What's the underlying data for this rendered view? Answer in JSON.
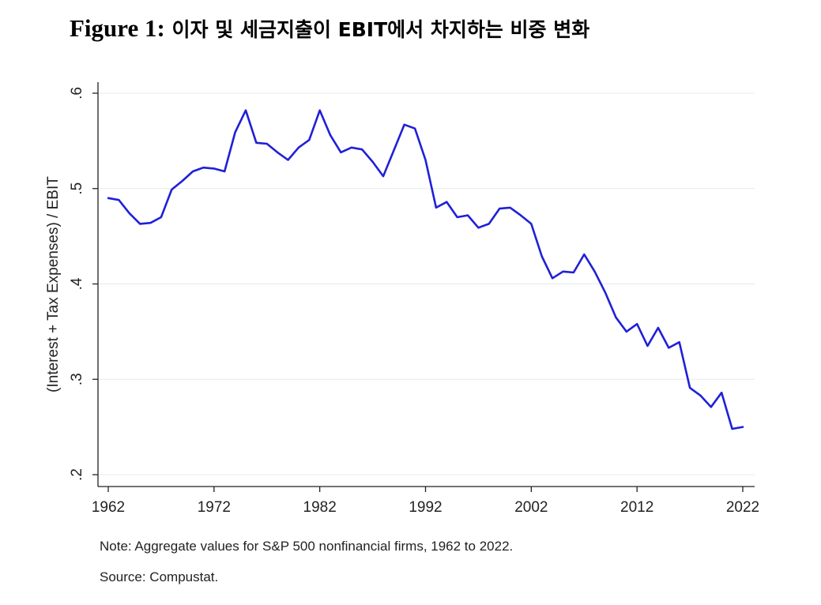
{
  "figure": {
    "label": "Figure 1:",
    "title": "이자 및 세금지출이 EBIT에서 차지하는 비중 변화"
  },
  "note": "Note: Aggregate values for S&P 500 nonfinancial firms, 1962 to 2022.",
  "source": "Source: Compustat.",
  "chart_data": {
    "type": "line",
    "title": "",
    "xlabel": "",
    "ylabel": "(Interest + Tax Expenses) / EBIT",
    "xlim": [
      1962,
      2022
    ],
    "ylim": [
      0.2,
      0.6
    ],
    "x_ticks": [
      1962,
      1972,
      1982,
      1992,
      2002,
      2012,
      2022
    ],
    "y_ticks": [
      0.2,
      0.3,
      0.4,
      0.5,
      0.6
    ],
    "y_tick_labels": [
      ".2",
      ".3",
      ".4",
      ".5",
      ".6"
    ],
    "grid": "horizontal",
    "line_color": "#2020d8",
    "series": [
      {
        "name": "(Interest + Tax Expenses) / EBIT",
        "x": [
          1962,
          1963,
          1964,
          1965,
          1966,
          1967,
          1968,
          1969,
          1970,
          1971,
          1972,
          1973,
          1974,
          1975,
          1976,
          1977,
          1978,
          1979,
          1980,
          1981,
          1982,
          1983,
          1984,
          1985,
          1986,
          1987,
          1988,
          1989,
          1990,
          1991,
          1992,
          1993,
          1994,
          1995,
          1996,
          1997,
          1998,
          1999,
          2000,
          2001,
          2002,
          2003,
          2004,
          2005,
          2006,
          2007,
          2008,
          2009,
          2010,
          2011,
          2012,
          2013,
          2014,
          2015,
          2016,
          2017,
          2018,
          2019,
          2020,
          2021,
          2022
        ],
        "values": [
          0.49,
          0.488,
          0.474,
          0.463,
          0.464,
          0.47,
          0.499,
          0.508,
          0.518,
          0.522,
          0.521,
          0.518,
          0.559,
          0.582,
          0.548,
          0.547,
          0.538,
          0.53,
          0.543,
          0.551,
          0.582,
          0.556,
          0.538,
          0.543,
          0.541,
          0.528,
          0.513,
          0.54,
          0.567,
          0.563,
          0.53,
          0.48,
          0.486,
          0.47,
          0.472,
          0.459,
          0.463,
          0.479,
          0.48,
          0.472,
          0.463,
          0.429,
          0.406,
          0.413,
          0.412,
          0.431,
          0.413,
          0.391,
          0.365,
          0.35,
          0.358,
          0.335,
          0.354,
          0.333,
          0.339,
          0.291,
          0.283,
          0.271,
          0.286,
          0.248,
          0.25
        ]
      }
    ]
  }
}
